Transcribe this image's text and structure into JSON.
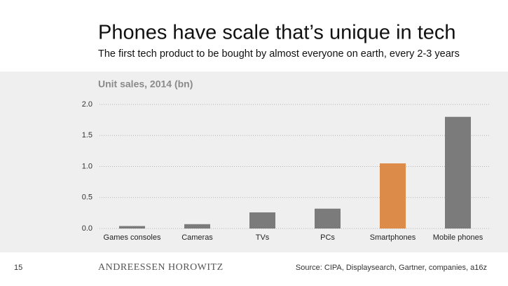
{
  "chart_data": {
    "type": "bar",
    "title": "Phones have scale that’s unique in tech",
    "subtitle": "The first tech product to be bought by almost everyone on earth, every 2-3 years",
    "y_label": "Unit sales, 2014 (bn)",
    "categories": [
      "Games consoles",
      "Cameras",
      "TVs",
      "PCs",
      "Smartphones",
      "Mobile phones"
    ],
    "values": [
      0.04,
      0.07,
      0.26,
      0.32,
      1.05,
      1.8
    ],
    "colors": [
      "#7b7b7b",
      "#7b7b7b",
      "#7b7b7b",
      "#7b7b7b",
      "#dd8b48",
      "#7b7b7b"
    ],
    "ylim": [
      0,
      2
    ],
    "yticks": [
      {
        "value": 0,
        "label": "0.0"
      },
      0.5,
      {
        "value": 1,
        "label": "1.0"
      },
      1.5,
      {
        "value": 2,
        "label": "2.0"
      }
    ],
    "grid": true
  },
  "footer": {
    "page": "15",
    "brand": "ANDREESSEN HOROWITZ",
    "source": "Source: CIPA, Displaysearch, Gartner, companies, a16z"
  }
}
